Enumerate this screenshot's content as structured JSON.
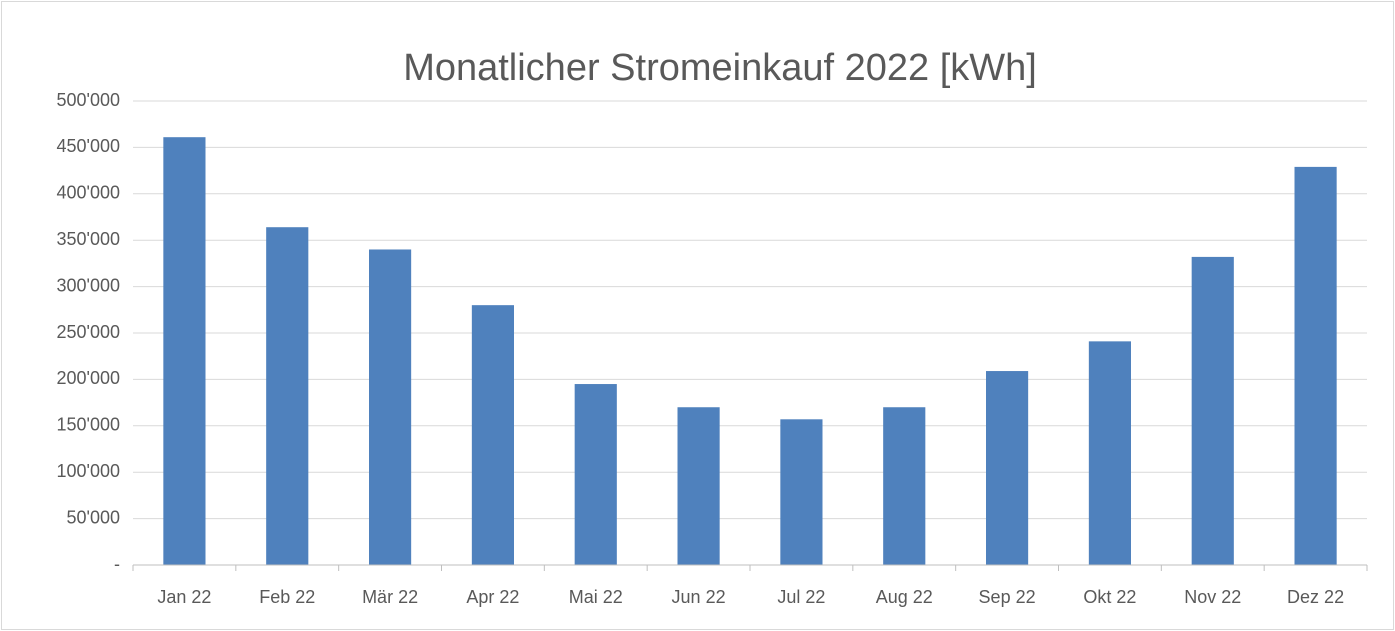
{
  "chart_data": {
    "type": "bar",
    "title": "Monatlicher Stromeinkauf 2022 [kWh]",
    "categories": [
      "Jan 22",
      "Feb 22",
      "Mär 22",
      "Apr 22",
      "Mai 22",
      "Jun 22",
      "Jul 22",
      "Aug 22",
      "Sep 22",
      "Okt 22",
      "Nov 22",
      "Dez 22"
    ],
    "values": [
      461000,
      364000,
      340000,
      280000,
      195000,
      170000,
      157000,
      170000,
      209000,
      241000,
      332000,
      429000
    ],
    "color": "#4f81bd",
    "ylim": [
      0,
      500000
    ],
    "yticks": [
      {
        "value": 0,
        "label": "-"
      },
      {
        "value": 50000,
        "label": "50'000"
      },
      {
        "value": 100000,
        "label": "100'000"
      },
      {
        "value": 150000,
        "label": "150'000"
      },
      {
        "value": 200000,
        "label": "200'000"
      },
      {
        "value": 250000,
        "label": "250'000"
      },
      {
        "value": 300000,
        "label": "300'000"
      },
      {
        "value": 350000,
        "label": "350'000"
      },
      {
        "value": 400000,
        "label": "400'000"
      },
      {
        "value": 450000,
        "label": "450'000"
      },
      {
        "value": 500000,
        "label": "500'000"
      }
    ],
    "grid": true
  }
}
